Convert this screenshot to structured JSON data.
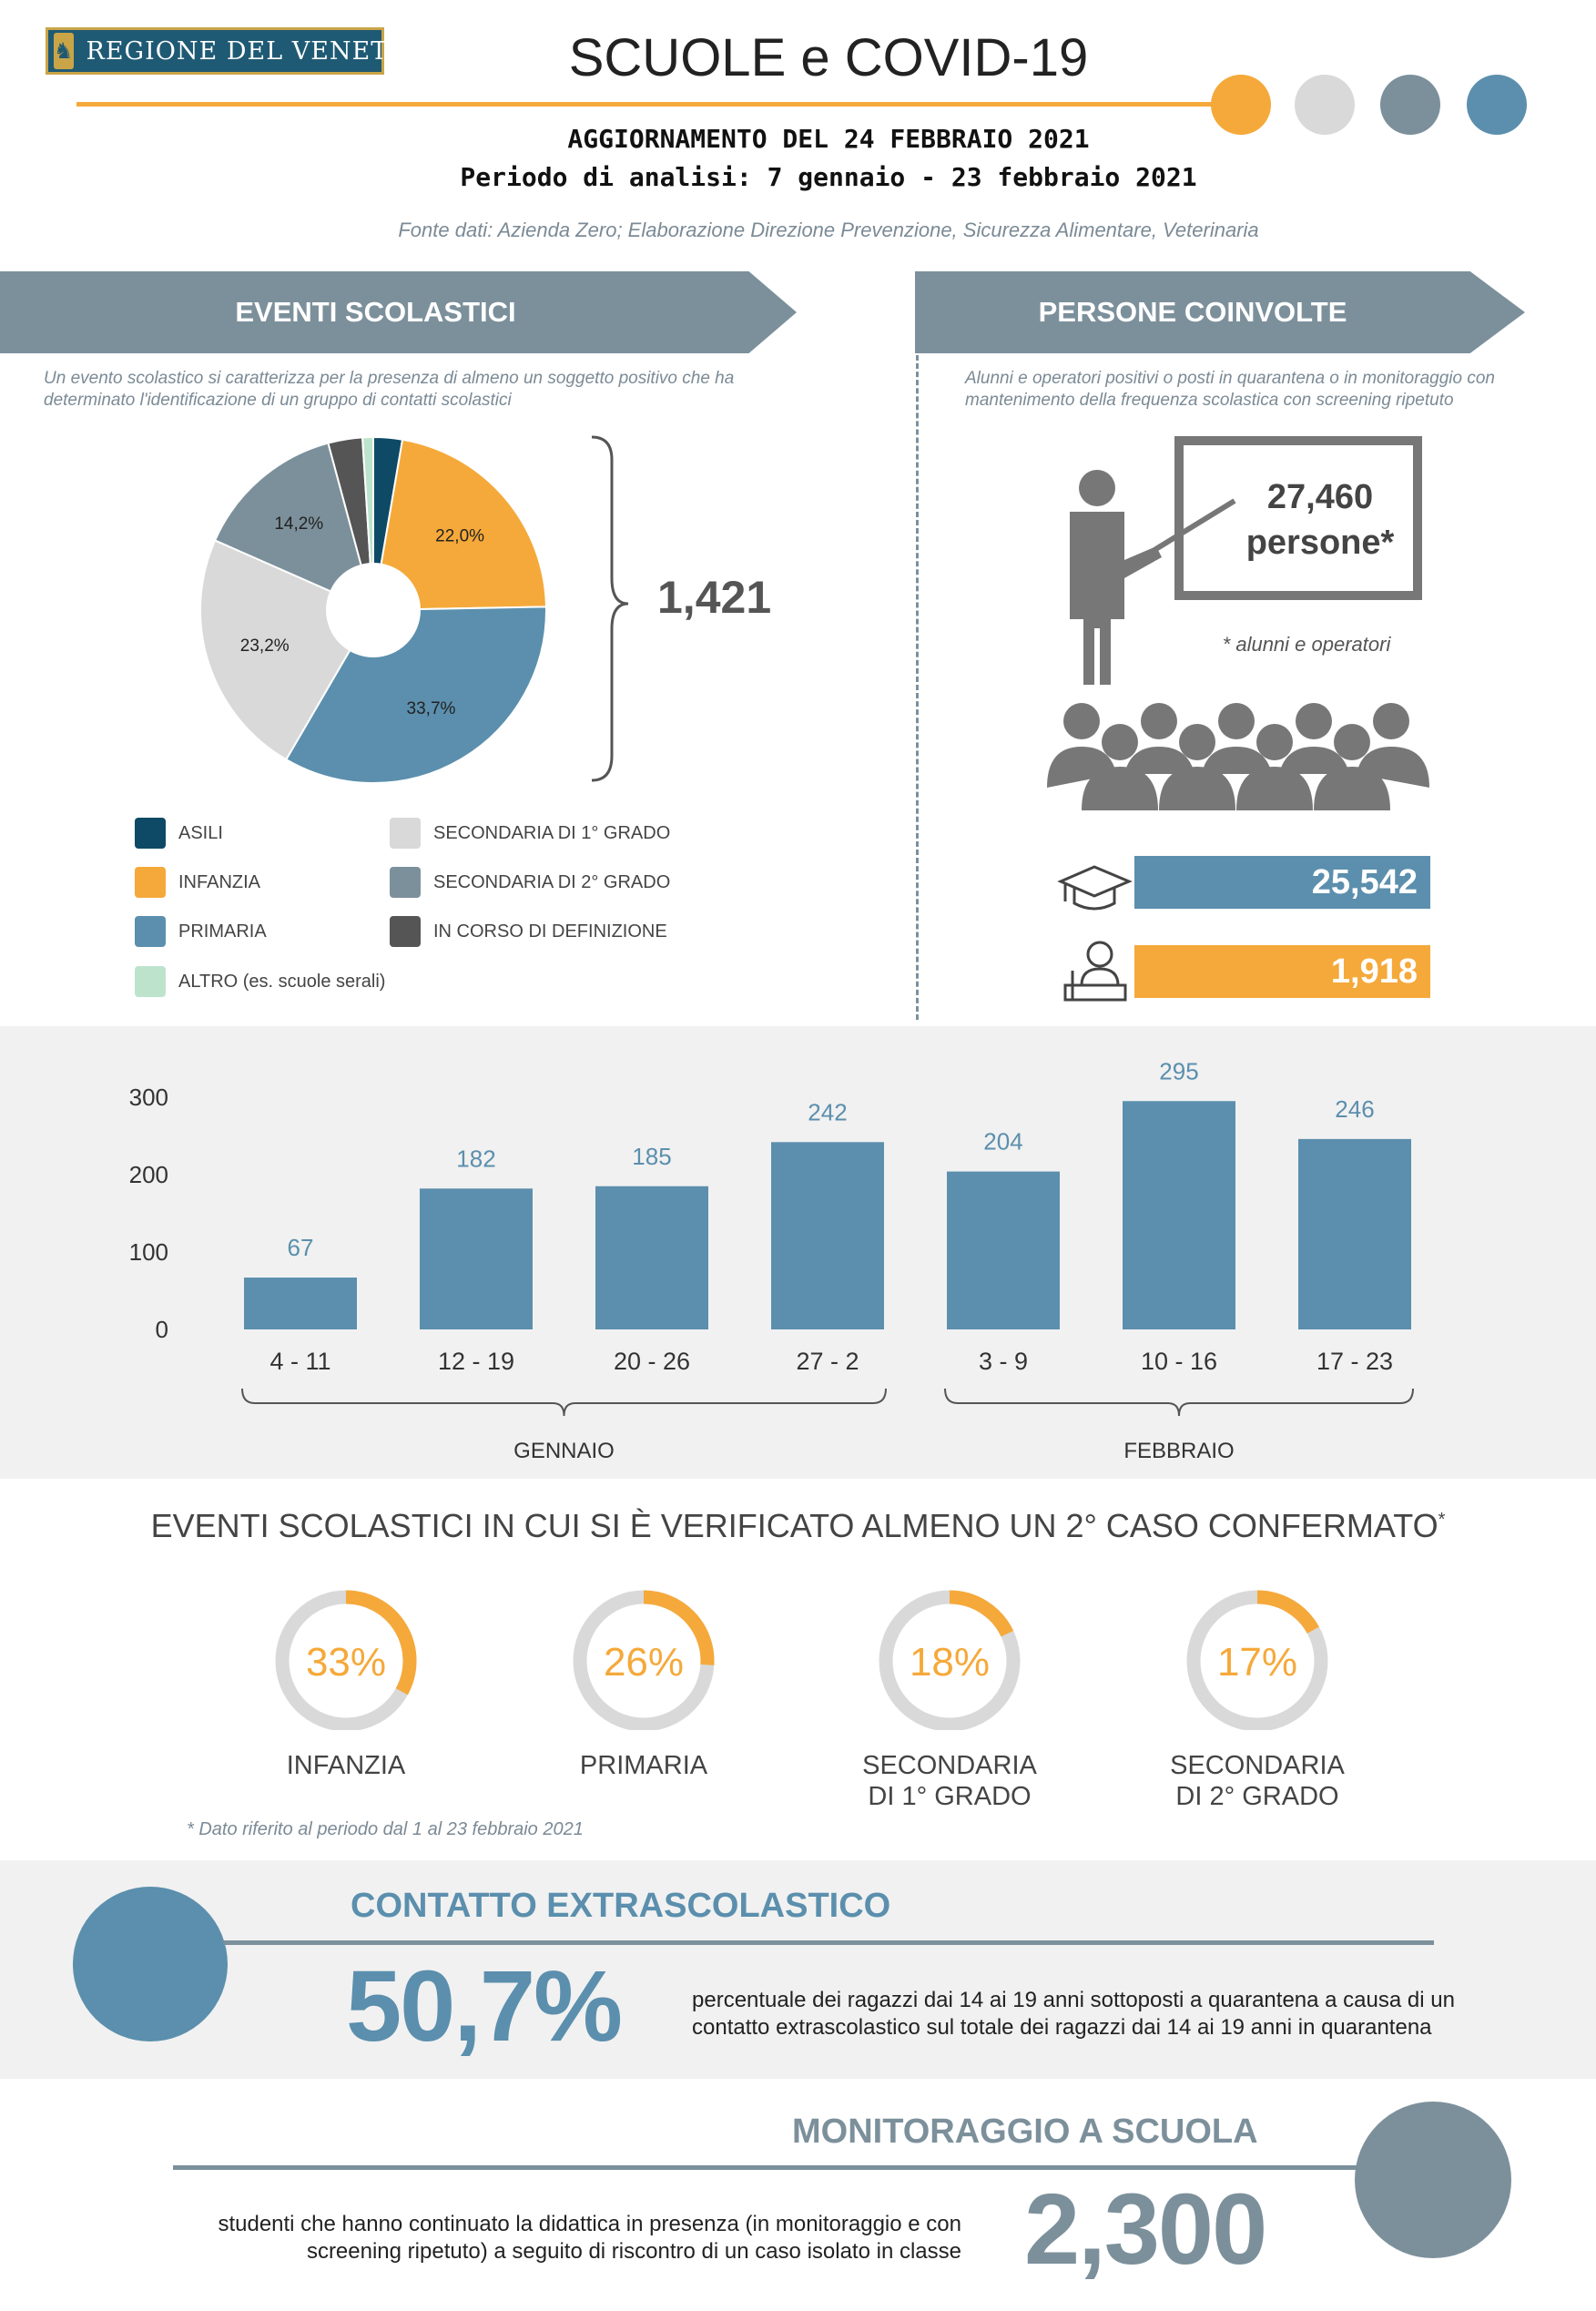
{
  "header": {
    "logo_text": "REGIONE DEL VENETO",
    "title": "SCUOLE e COVID-19",
    "update": "AGGIORNAMENTO DEL 24 FEBBRAIO 2021",
    "period": "Periodo di analisi: 7 gennaio - 23 febbraio 2021",
    "source": "Fonte dati: Azienda Zero; Elaborazione Direzione Prevenzione, Sicurezza Alimentare, Veterinaria",
    "dot_colors": [
      "#f5a93a",
      "#d9d9d9",
      "#7c909b",
      "#5b8fad"
    ]
  },
  "events": {
    "banner": "EVENTI SCOLASTICI",
    "note": "Un evento scolastico si caratterizza per la presenza di almeno un soggetto positivo che ha determinato l'identificazione di un gruppo di contatti scolastici",
    "total": "1,421",
    "legend": [
      {
        "label": "ASILI",
        "color": "#0e4a66"
      },
      {
        "label": "INFANZIA",
        "color": "#f5a93a"
      },
      {
        "label": "PRIMARIA",
        "color": "#5b8fad"
      },
      {
        "label": "ALTRO (es. scuole serali)",
        "color": "#bde3cd"
      },
      {
        "label": "SECONDARIA DI 1° GRADO",
        "color": "#d9d9d9"
      },
      {
        "label": "SECONDARIA DI 2° GRADO",
        "color": "#7c909b"
      },
      {
        "label": "IN CORSO DI DEFINIZIONE",
        "color": "#555555"
      }
    ]
  },
  "people": {
    "banner": "PERSONE COINVOLTE",
    "note": "Alunni e operatori positivi o posti in quarantena o in monitoraggio con mantenimento della frequenza scolastica con screening ripetuto",
    "total": "27,460",
    "total_label": "persone*",
    "footnote": "* alunni e operatori",
    "students": 25542,
    "students_label": "25,542",
    "operators": 1918,
    "operators_label": "1,918"
  },
  "chart_data": [
    {
      "type": "pie",
      "categories": [
        "ASILI",
        "INFANZIA",
        "PRIMARIA",
        "SECONDARIA DI 1° GRADO",
        "SECONDARIA DI 2° GRADO",
        "IN CORSO DI DEFINIZIONE",
        "ALTRO (es. scuole serali)"
      ],
      "values": [
        2.7,
        22.0,
        33.7,
        23.2,
        14.2,
        3.2,
        1.0
      ],
      "labels": [
        "",
        "22,0%",
        "33,7%",
        "23,2%",
        "14,2%",
        "",
        ""
      ],
      "colors": [
        "#0e4a66",
        "#f5a93a",
        "#5b8fad",
        "#d9d9d9",
        "#7c909b",
        "#555555",
        "#bde3cd"
      ]
    },
    {
      "type": "bar",
      "categories": [
        "4 - 11",
        "12 - 19",
        "20 - 26",
        "27 - 2",
        "3 - 9",
        "10 - 16",
        "17 - 23"
      ],
      "values": [
        67,
        182,
        185,
        242,
        204,
        295,
        246
      ],
      "yticks": [
        "0",
        "100",
        "200",
        "300"
      ],
      "ylim": [
        0,
        300
      ],
      "groups": [
        {
          "label": "GENNAIO",
          "from": 0,
          "to": 3
        },
        {
          "label": "FEBBRAIO",
          "from": 4,
          "to": 6
        }
      ],
      "color": "#5b8fad"
    },
    {
      "type": "pie",
      "title": "EVENTI SCOLASTICI IN CUI SI È VERIFICATO ALMENO UN 2° CASO CONFERMATO",
      "title_mark": "*",
      "categories": [
        "INFANZIA",
        "PRIMARIA",
        "SECONDARIA|DI 1° GRADO",
        "SECONDARIA|DI 2° GRADO"
      ],
      "values": [
        33,
        26,
        18,
        17
      ],
      "labels": [
        "33%",
        "26%",
        "18%",
        "17%"
      ],
      "footnote": "* Dato riferito al periodo dal 1 al 23 febbraio 2021"
    }
  ],
  "extra": {
    "title": "CONTATTO EXTRASCOLASTICO",
    "value": "50,7%",
    "desc1": "percentuale dei ragazzi dai 14 ai 19 anni sottoposti a quarantena a causa di un",
    "desc2": "contatto extrascolastico sul totale dei ragazzi dai 14 ai 19 anni in quarantena"
  },
  "monitoring": {
    "title": "MONITORAGGIO A SCUOLA",
    "value": "2,300",
    "desc1": "studenti che hanno continuato la didattica in presenza (in monitoraggio e con",
    "desc2": "screening ripetuto) a seguito di riscontro di un caso isolato in classe"
  }
}
